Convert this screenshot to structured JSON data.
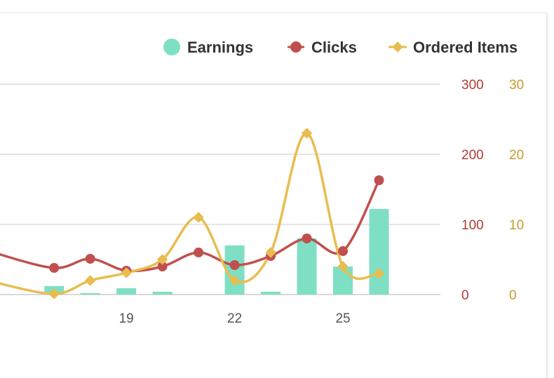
{
  "chart_data": {
    "type": "bar+line",
    "legend": {
      "position": "top-right",
      "items": [
        "Earnings",
        "Clicks",
        "Ordered Items"
      ]
    },
    "colors": {
      "earnings": "#7fdfc4",
      "clicks": "#c0504d",
      "ordered_items": "#e8bd4f",
      "grid": "#dddddd",
      "axis_left_text": "#b03a36",
      "axis_right_text": "#c99a2b"
    },
    "x": [
      16,
      17,
      18,
      19,
      20,
      21,
      22,
      23,
      24,
      25,
      26,
      27
    ],
    "x_tick_labels": [
      {
        "x": 19,
        "label": "19"
      },
      {
        "x": 22,
        "label": "22"
      },
      {
        "x": 25,
        "label": "25"
      }
    ],
    "series": [
      {
        "name": "Earnings",
        "kind": "bar",
        "axis": "clicks",
        "values": [
          0,
          12,
          2,
          9,
          4,
          0,
          70,
          4,
          80,
          40,
          122,
          null
        ]
      },
      {
        "name": "Clicks",
        "kind": "line",
        "marker": "circle",
        "axis": "clicks",
        "values": [
          null,
          38,
          51,
          34,
          40,
          60,
          42,
          55,
          80,
          62,
          163,
          null
        ]
      },
      {
        "name": "Ordered Items",
        "kind": "line",
        "marker": "diamond",
        "axis": "ordered_items",
        "values": [
          null,
          0.1,
          2.0,
          3.1,
          5.0,
          11.0,
          2.0,
          6.0,
          23.0,
          4.0,
          3.0,
          null
        ]
      }
    ],
    "x_plot_range": [
      15.5,
      27.7
    ],
    "clicks_axis": {
      "range": [
        0,
        300
      ],
      "ticks": [
        "0",
        "100",
        "200",
        "300"
      ]
    },
    "ordered_items_axis": {
      "range": [
        0,
        30
      ],
      "ticks": [
        "0",
        "10",
        "20",
        "30"
      ]
    },
    "grid": true
  }
}
